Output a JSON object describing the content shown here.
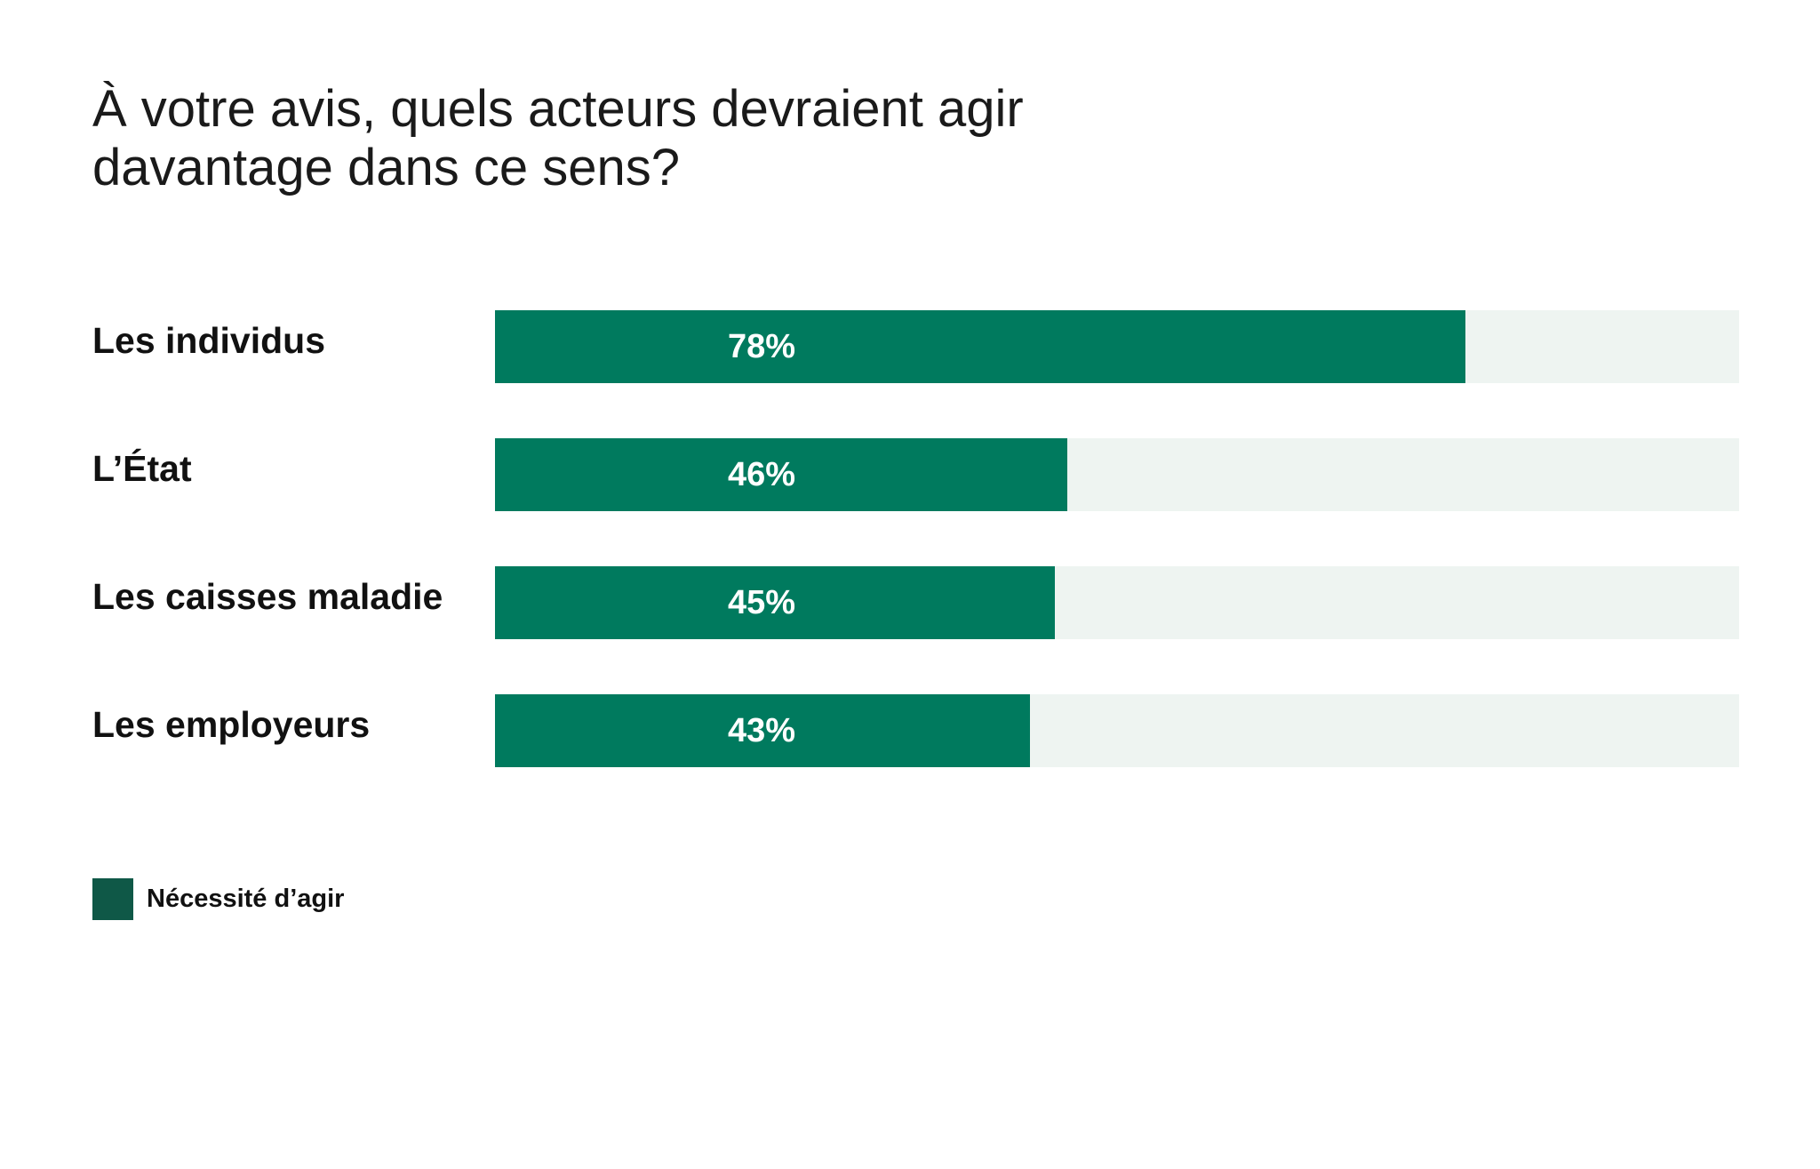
{
  "chart_data": {
    "type": "bar",
    "orientation": "horizontal",
    "title": [
      "À votre avis, quels acteurs devraient agir",
      "davantage dans ce sens?"
    ],
    "categories": [
      "Les individus",
      "L’État",
      "Les caisses maladie",
      "Les employeurs"
    ],
    "series": [
      {
        "name": "Nécessité d’agir",
        "values": [
          78,
          46,
          45,
          43
        ],
        "labels": [
          "78%",
          "46%",
          "45%",
          "43%"
        ],
        "color": "#007a5e"
      }
    ],
    "xlim": [
      0,
      100
    ],
    "unit": "%",
    "track_color": "#eef4f1",
    "legend": {
      "label": "Nécessité d’agir",
      "swatch_color": "#0f5847",
      "placement": "bottom-left"
    },
    "grid": false
  }
}
